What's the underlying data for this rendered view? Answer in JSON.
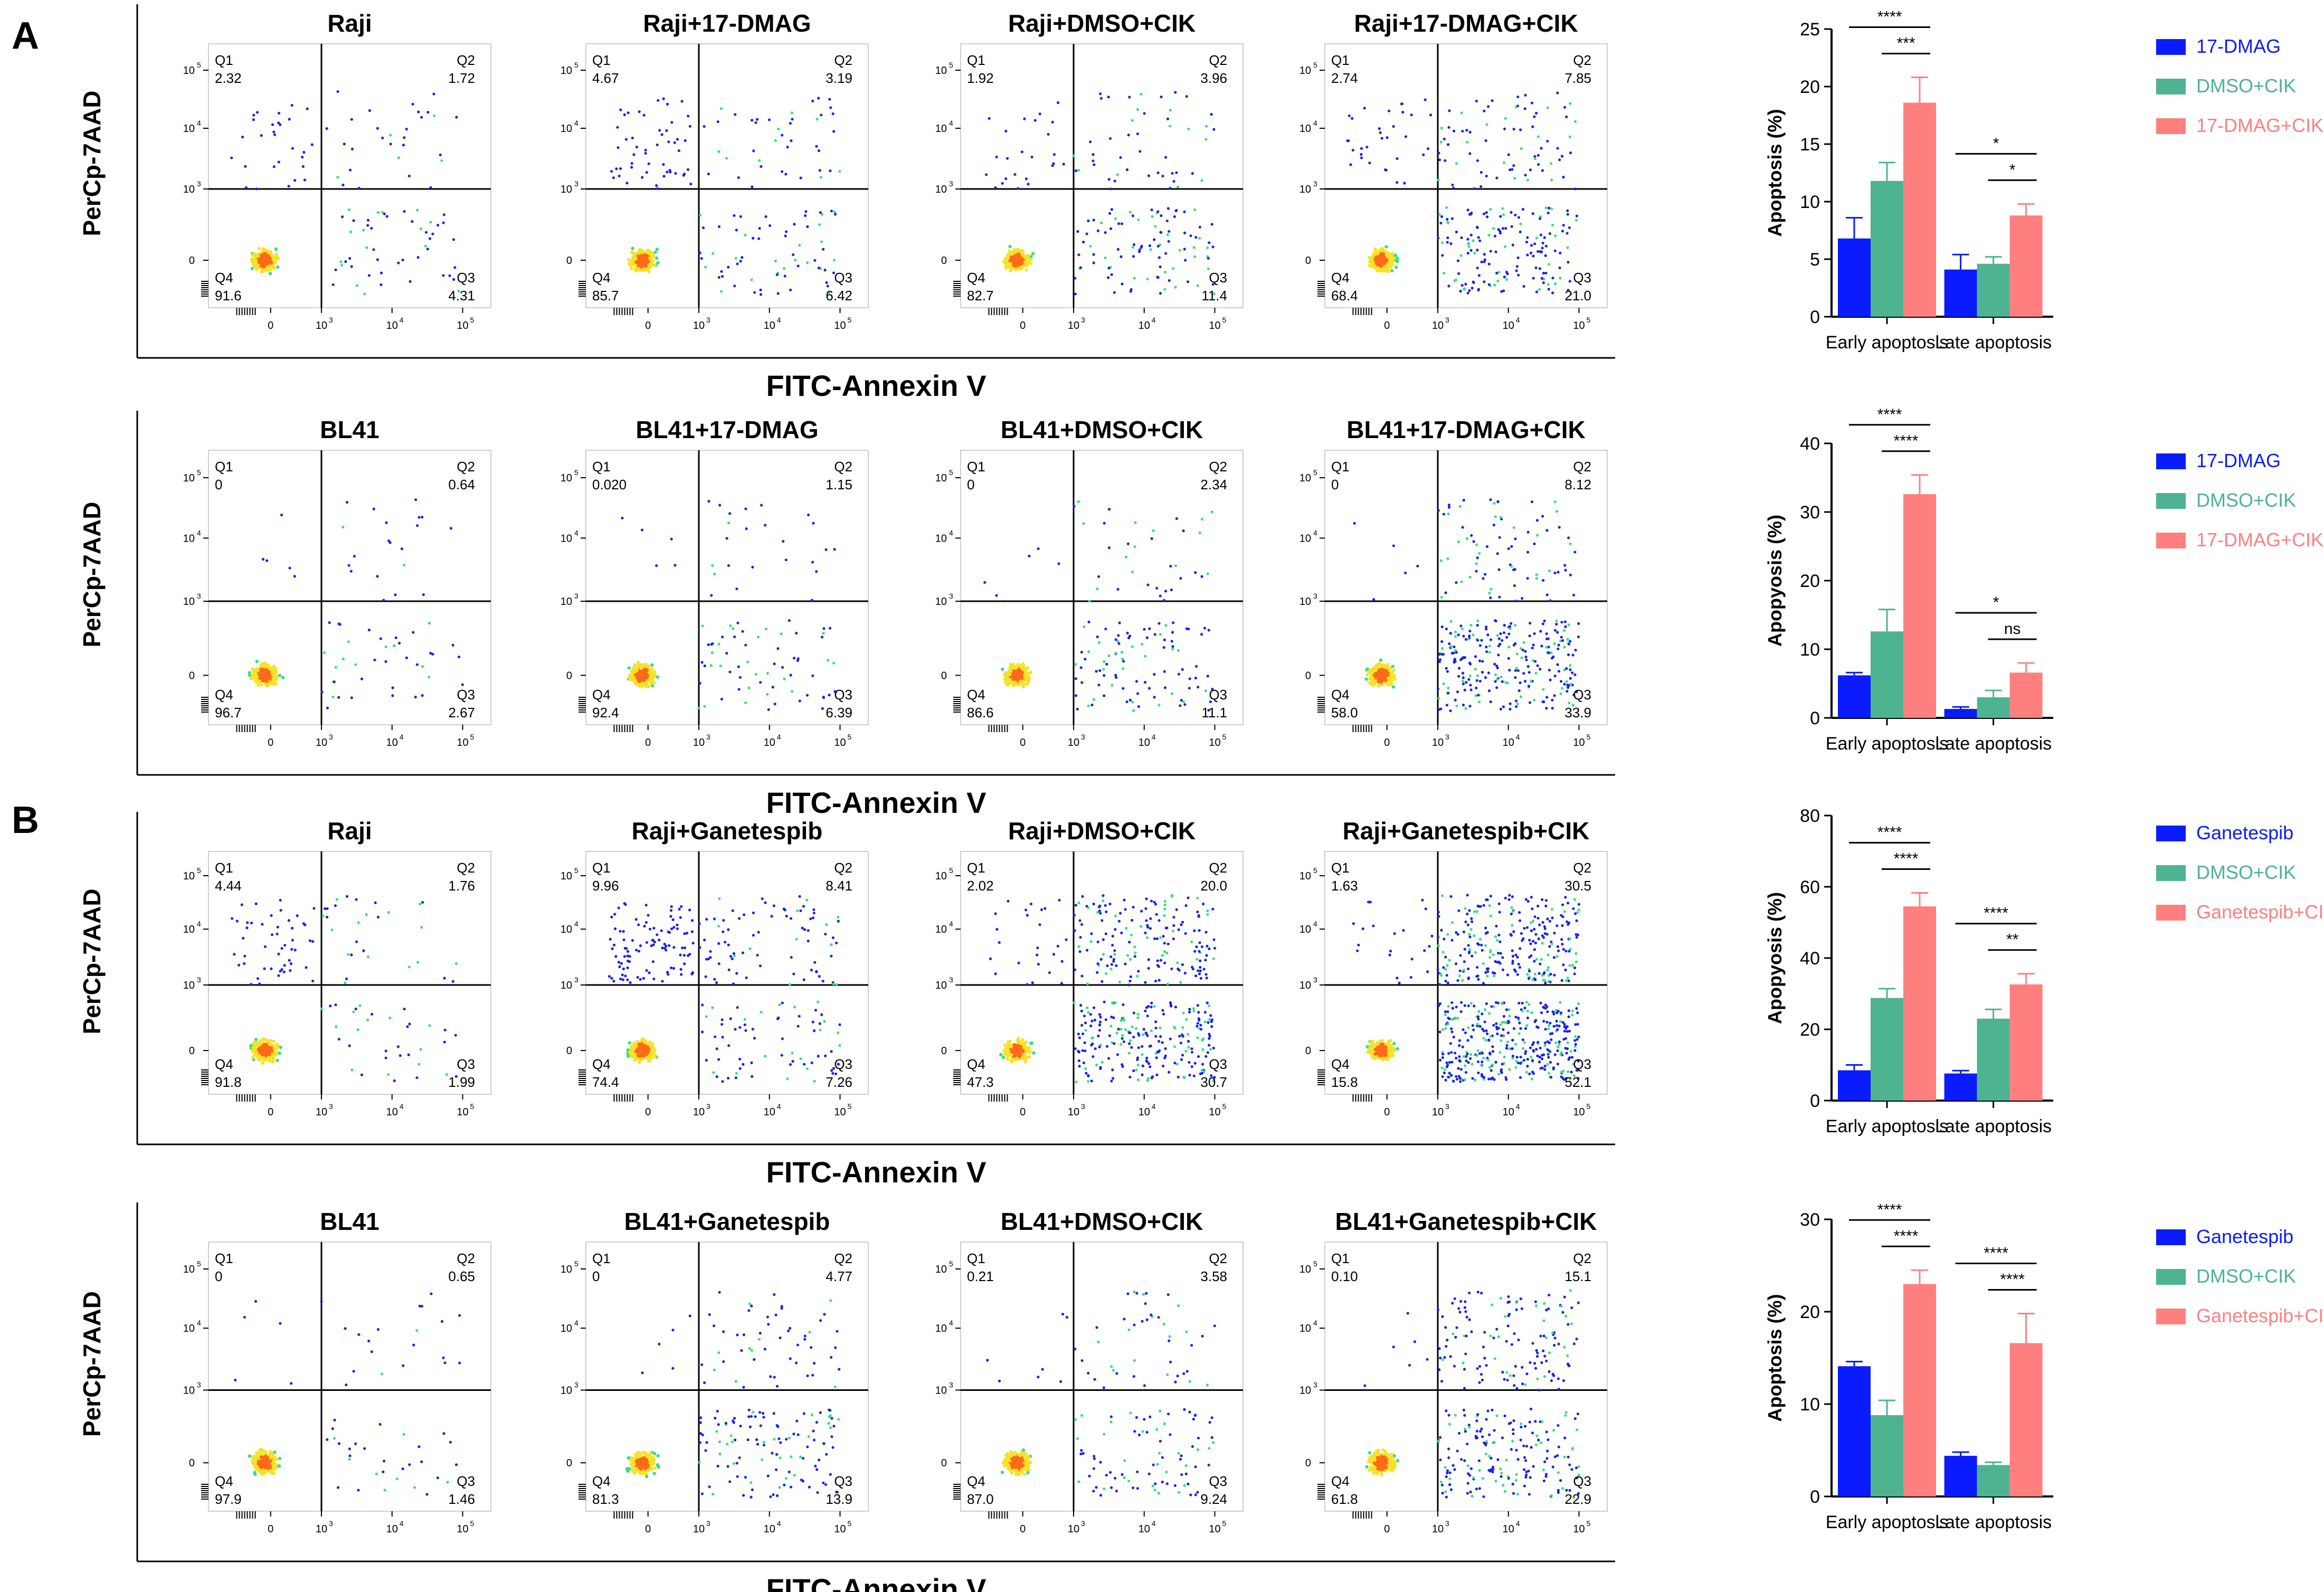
{
  "panel_labels": [
    "A",
    "B"
  ],
  "colors": {
    "blue": "#0a1cff",
    "green": "#4db391",
    "pink": "#ff7f7f",
    "axis": "#000000"
  },
  "flow_rows": [
    {
      "ylabel": "PerCp-7AAD",
      "xlabel": "FITC-Annexin V",
      "plots": [
        {
          "title": "Raji",
          "q1": "2.32",
          "q2": "1.72",
          "q3": "4.31",
          "q4": "91.6"
        },
        {
          "title": "Raji+17-DMAG",
          "q1": "4.67",
          "q2": "3.19",
          "q3": "6.42",
          "q4": "85.7"
        },
        {
          "title": "Raji+DMSO+CIK",
          "q1": "1.92",
          "q2": "3.96",
          "q3": "11.4",
          "q4": "82.7"
        },
        {
          "title": "Raji+17-DMAG+CIK",
          "q1": "2.74",
          "q2": "7.85",
          "q3": "21.0",
          "q4": "68.4"
        }
      ]
    },
    {
      "ylabel": "PerCp-7AAD",
      "xlabel": "FITC-Annexin V",
      "plots": [
        {
          "title": "BL41",
          "q1": "0",
          "q2": "0.64",
          "q3": "2.67",
          "q4": "96.7"
        },
        {
          "title": "BL41+17-DMAG",
          "q1": "0.020",
          "q2": "1.15",
          "q3": "6.39",
          "q4": "92.4"
        },
        {
          "title": "BL41+DMSO+CIK",
          "q1": "0",
          "q2": "2.34",
          "q3": "11.1",
          "q4": "86.6"
        },
        {
          "title": "BL41+17-DMAG+CIK",
          "q1": "0",
          "q2": "8.12",
          "q3": "33.9",
          "q4": "58.0"
        }
      ]
    },
    {
      "ylabel": "PerCp-7AAD",
      "xlabel": "FITC-Annexin V",
      "plots": [
        {
          "title": "Raji",
          "q1": "4.44",
          "q2": "1.76",
          "q3": "1.99",
          "q4": "91.8"
        },
        {
          "title": "Raji+Ganetespib",
          "q1": "9.96",
          "q2": "8.41",
          "q3": "7.26",
          "q4": "74.4"
        },
        {
          "title": "Raji+DMSO+CIK",
          "q1": "2.02",
          "q2": "20.0",
          "q3": "30.7",
          "q4": "47.3"
        },
        {
          "title": "Raji+Ganetespib+CIK",
          "q1": "1.63",
          "q2": "30.5",
          "q3": "52.1",
          "q4": "15.8"
        }
      ]
    },
    {
      "ylabel": "PerCp-7AAD",
      "xlabel": "FITC-Annexin V",
      "plots": [
        {
          "title": "BL41",
          "q1": "0",
          "q2": "0.65",
          "q3": "1.46",
          "q4": "97.9"
        },
        {
          "title": "BL41+Ganetespib",
          "q1": "0",
          "q2": "4.77",
          "q3": "13.9",
          "q4": "81.3"
        },
        {
          "title": "BL41+DMSO+CIK",
          "q1": "0.21",
          "q2": "3.58",
          "q3": "9.24",
          "q4": "87.0"
        },
        {
          "title": "BL41+Ganetespib+CIK",
          "q1": "0.10",
          "q2": "15.1",
          "q3": "22.9",
          "q4": "61.8"
        }
      ]
    }
  ],
  "flow_axis": {
    "q_names": [
      "Q1",
      "Q2",
      "Q3",
      "Q4"
    ],
    "x_ticks": [
      "0",
      "10",
      "10",
      "10"
    ],
    "x_tick_exponents": [
      "",
      "3",
      "4",
      "5"
    ],
    "y_ticks": [
      "0",
      "10",
      "10",
      "10"
    ],
    "y_tick_exponents": [
      "",
      "3",
      "4",
      "5"
    ],
    "neg_tick": "10",
    "neg_tick_exponent": "3",
    "neg_tick_minus": "-10"
  },
  "chart_data": [
    {
      "type": "bar",
      "title": "",
      "ylabel": "Apoptosis (%)",
      "categories": [
        "Early apoptosis",
        "Late apoptosis"
      ],
      "ylim": [
        0,
        25
      ],
      "yticks": [
        0,
        5,
        10,
        15,
        20,
        25
      ],
      "series": [
        {
          "name": "17-DMAG",
          "color": "#0a1cff",
          "values": [
            6.8,
            4.1
          ],
          "errors": [
            1.8,
            1.3
          ]
        },
        {
          "name": "DMSO+CIK",
          "color": "#4db391",
          "values": [
            11.8,
            4.6
          ],
          "errors": [
            1.6,
            0.6
          ]
        },
        {
          "name": "17-DMAG+CIK",
          "color": "#ff7f7f",
          "values": [
            18.6,
            8.8
          ],
          "errors": [
            2.2,
            1.0
          ]
        }
      ],
      "significance": [
        {
          "category": 0,
          "from": 0,
          "to": 2,
          "level": 0,
          "label": "****"
        },
        {
          "category": 0,
          "from": 1,
          "to": 2,
          "level": 1,
          "label": "***"
        },
        {
          "category": 1,
          "from": 0,
          "to": 2,
          "level": 0,
          "label": "*"
        },
        {
          "category": 1,
          "from": 1,
          "to": 2,
          "level": 1,
          "label": "*"
        }
      ],
      "legend": "right"
    },
    {
      "type": "bar",
      "title": "",
      "ylabel": "Apopyosis (%)",
      "categories": [
        "Early apoptosis",
        "Late apoptosis"
      ],
      "ylim": [
        0,
        40
      ],
      "yticks": [
        0,
        10,
        20,
        30,
        40
      ],
      "series": [
        {
          "name": "17-DMAG",
          "color": "#0a1cff",
          "values": [
            6.2,
            1.3
          ],
          "errors": [
            0.4,
            0.3
          ]
        },
        {
          "name": "DMSO+CIK",
          "color": "#4db391",
          "values": [
            12.6,
            3.0
          ],
          "errors": [
            3.2,
            1.0
          ]
        },
        {
          "name": "17-DMAG+CIK",
          "color": "#ff7f7f",
          "values": [
            32.6,
            6.6
          ],
          "errors": [
            2.8,
            1.4
          ]
        }
      ],
      "significance": [
        {
          "category": 0,
          "from": 0,
          "to": 2,
          "level": 0,
          "label": "****"
        },
        {
          "category": 0,
          "from": 1,
          "to": 2,
          "level": 1,
          "label": "****"
        },
        {
          "category": 1,
          "from": 0,
          "to": 2,
          "level": 0,
          "label": "*"
        },
        {
          "category": 1,
          "from": 1,
          "to": 2,
          "level": 1,
          "label": "ns"
        }
      ],
      "legend": "right"
    },
    {
      "type": "bar",
      "title": "",
      "ylabel": "Apopyosis (%)",
      "categories": [
        "Early apoptosis",
        "Late apoptosis"
      ],
      "ylim": [
        0,
        80
      ],
      "yticks": [
        0,
        20,
        40,
        60,
        80
      ],
      "series": [
        {
          "name": "Ganetespib",
          "color": "#0a1cff",
          "values": [
            8.5,
            7.6
          ],
          "errors": [
            1.5,
            0.8
          ]
        },
        {
          "name": "DMSO+CIK",
          "color": "#4db391",
          "values": [
            28.8,
            23.0
          ],
          "errors": [
            2.6,
            2.6
          ]
        },
        {
          "name": "Ganetespib+CIK",
          "color": "#ff7f7f",
          "values": [
            54.5,
            32.6
          ],
          "errors": [
            3.8,
            3.0
          ]
        }
      ],
      "significance": [
        {
          "category": 0,
          "from": 0,
          "to": 2,
          "level": 0,
          "label": "****"
        },
        {
          "category": 0,
          "from": 1,
          "to": 2,
          "level": 1,
          "label": "****"
        },
        {
          "category": 1,
          "from": 0,
          "to": 2,
          "level": 0,
          "label": "****"
        },
        {
          "category": 1,
          "from": 1,
          "to": 2,
          "level": 1,
          "label": "**"
        }
      ],
      "legend": "right"
    },
    {
      "type": "bar",
      "title": "",
      "ylabel": "Apoptosis (%)",
      "categories": [
        "Early apoptosis",
        "Late apoptosis"
      ],
      "ylim": [
        0,
        30
      ],
      "yticks": [
        0,
        10,
        20,
        30
      ],
      "series": [
        {
          "name": "Ganetespib",
          "color": "#0a1cff",
          "values": [
            14.1,
            4.4
          ],
          "errors": [
            0.5,
            0.4
          ]
        },
        {
          "name": "DMSO+CIK",
          "color": "#4db391",
          "values": [
            8.8,
            3.4
          ],
          "errors": [
            1.6,
            0.3
          ]
        },
        {
          "name": "Ganetespib+CIK",
          "color": "#ff7f7f",
          "values": [
            23.0,
            16.6
          ],
          "errors": [
            1.5,
            3.2
          ]
        }
      ],
      "significance": [
        {
          "category": 0,
          "from": 0,
          "to": 2,
          "level": 0,
          "label": "****"
        },
        {
          "category": 0,
          "from": 1,
          "to": 2,
          "level": 1,
          "label": "****"
        },
        {
          "category": 1,
          "from": 0,
          "to": 2,
          "level": 0,
          "label": "****"
        },
        {
          "category": 1,
          "from": 1,
          "to": 2,
          "level": 1,
          "label": "****"
        }
      ],
      "legend": "right"
    }
  ]
}
